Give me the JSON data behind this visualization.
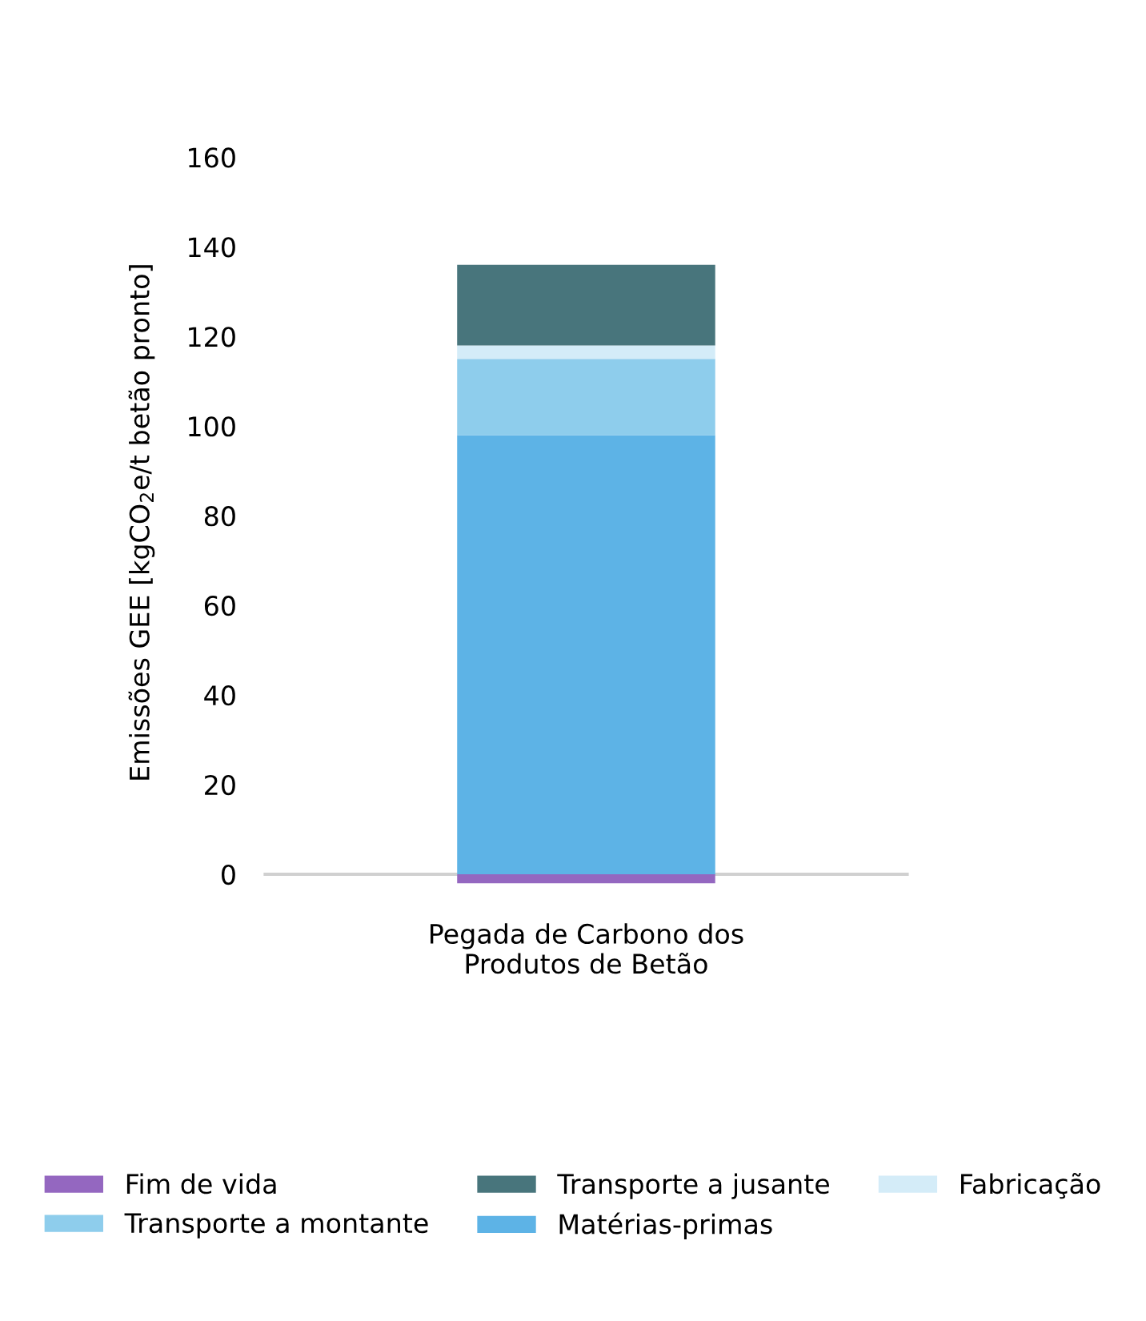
{
  "chart_data": {
    "type": "bar",
    "stacked": true,
    "ylabel": "Emissões GEE [kgCO$_{2}$e/t betão pronto]",
    "categories": [
      "Pegada de Carbono dos\nProdutos de Betão"
    ],
    "series": [
      {
        "name": "Fim de vida",
        "color": "#9467c0",
        "values": [
          -2
        ]
      },
      {
        "name": "Matérias-primas",
        "color": "#5db3e6",
        "values": [
          98
        ]
      },
      {
        "name": "Transporte a montante",
        "color": "#8ecdec",
        "values": [
          17
        ]
      },
      {
        "name": "Fabricação",
        "color": "#d4ecf8",
        "values": [
          3
        ]
      },
      {
        "name": "Transporte a jusante",
        "color": "#48757c",
        "values": [
          18
        ]
      }
    ],
    "ylim": [
      -3,
      160
    ],
    "yticks": [
      0,
      20,
      40,
      60,
      80,
      100,
      120,
      140,
      160
    ],
    "ref_lines": [
      {
        "axis": "y",
        "value": 0,
        "color": "#d0d0d0"
      }
    ],
    "legend": "bottom"
  }
}
